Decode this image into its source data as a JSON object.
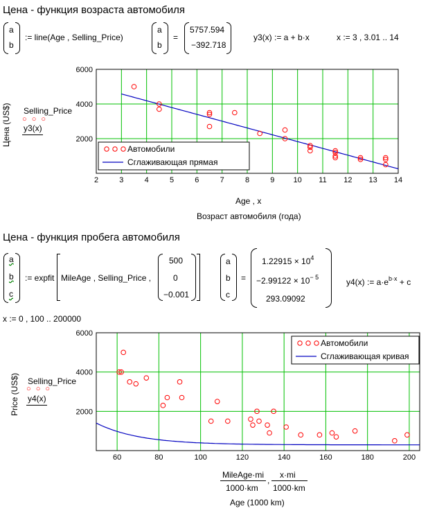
{
  "section1": {
    "title": "Цена - функция возраста автомобиля",
    "vec_a": "a",
    "vec_b": "b",
    "assign_call": ":= line(Age , Selling_Price)",
    "eq": "=",
    "result_a": "5757.594",
    "result_b": "−392.718",
    "fn_def": "y3(x) := a + b·x",
    "range_def": "x := 3 , 3.01 .. 14",
    "legend_selling": "Selling_Price",
    "legend_fit": "y3(x)",
    "ylabel": "Цена (US$)",
    "xlabel_expr": "Age , x",
    "xlabel": "Возраст автомобиля (года)"
  },
  "section2": {
    "title": "Цена - функция пробега автомобиля",
    "vec_a": "a",
    "vec_b": "b",
    "vec_c": "c",
    "assign_prefix": ":= expfit",
    "args": "MileAge , Selling_Price ,",
    "guess": [
      "500",
      "0",
      "−0.001"
    ],
    "eq": "=",
    "result_a_base": "1.22915 × 10",
    "result_a_exp": "4",
    "result_b_base": "−2.99122 × 10",
    "result_b_exp": "− 5",
    "result_c": "293.09092",
    "fn_def_base": "y4(x) := a·e",
    "fn_def_exp": "b·x",
    "fn_def_tail": " + c",
    "range_def": "x := 0 , 100 .. 200000",
    "legend_selling": "Selling_Price",
    "legend_fit": "y4(x)",
    "ylabel": "Price (US$)",
    "xlabel_num1": "MileAge·mi",
    "xlabel_den1": "1000·km",
    "xlabel_sep": ",",
    "xlabel_num2": "x·mi",
    "xlabel_den2": "1000·km",
    "xlabel": "Age (1000 km)"
  },
  "colors": {
    "grid": "#00c000",
    "points": "#ff0000",
    "fit": "#0000c0"
  },
  "chart_data": [
    {
      "type": "scatter",
      "title": "",
      "xlabel": "Возраст автомобиля (года)",
      "ylabel": "Цена (US$)",
      "xlim": [
        2,
        14
      ],
      "ylim": [
        0,
        6000
      ],
      "xticks": [
        2,
        3,
        4,
        5,
        6,
        7,
        8,
        9,
        10,
        11,
        12,
        13,
        14
      ],
      "yticks": [
        2000,
        4000,
        6000
      ],
      "grid": true,
      "legend_position": "bottom-left",
      "legend": [
        "Автомобили",
        "Сглаживающая прямая"
      ],
      "series": [
        {
          "name": "Автомобили",
          "kind": "points",
          "x": [
            3.5,
            4.5,
            4.5,
            6.5,
            6.5,
            6.5,
            7.5,
            8.5,
            9.5,
            9.5,
            10.5,
            10.5,
            10.5,
            11.5,
            11.5,
            11.5,
            11.5,
            12.5,
            12.5,
            13.5,
            13.5,
            13.5
          ],
          "y": [
            5000,
            4000,
            3700,
            3500,
            3400,
            2700,
            3500,
            2300,
            2500,
            2000,
            1600,
            1500,
            1300,
            1300,
            1200,
            1000,
            900,
            900,
            800,
            900,
            800,
            500
          ]
        },
        {
          "name": "Сглаживающая прямая",
          "kind": "line",
          "a": 5757.594,
          "b": -392.718,
          "x_from": 3,
          "x_to": 14
        }
      ]
    },
    {
      "type": "scatter",
      "title": "",
      "xlabel": "Age (1000 km)",
      "ylabel": "Price (US$)",
      "xlim": [
        50,
        205
      ],
      "ylim": [
        0,
        6000
      ],
      "xticks": [
        60,
        80,
        100,
        120,
        140,
        160,
        180,
        200
      ],
      "yticks": [
        2000,
        4000,
        6000
      ],
      "grid": true,
      "legend_position": "top-right",
      "legend": [
        "Автомобили",
        "Сглаживающая кривая"
      ],
      "series": [
        {
          "name": "Автомобили",
          "kind": "points",
          "x": [
            61,
            62,
            63,
            66,
            69,
            74,
            82,
            84,
            90,
            91,
            105,
            108,
            113,
            124,
            125,
            127,
            128,
            132,
            133,
            135,
            141,
            148,
            157,
            163,
            165,
            174,
            193,
            199
          ],
          "y": [
            4000,
            4000,
            5000,
            3500,
            3400,
            3700,
            2300,
            2700,
            3500,
            2700,
            1500,
            2500,
            1500,
            1600,
            1300,
            2000,
            1500,
            1300,
            900,
            2000,
            1200,
            800,
            800,
            900,
            700,
            1000,
            500,
            800
          ]
        },
        {
          "name": "Сглаживающая кривая",
          "kind": "exp",
          "a": 12291.5,
          "b": -2.99122e-05,
          "c": 293.09092,
          "x_from": 50,
          "x_to": 205,
          "x_scale_km": 1609.344
        }
      ]
    }
  ]
}
